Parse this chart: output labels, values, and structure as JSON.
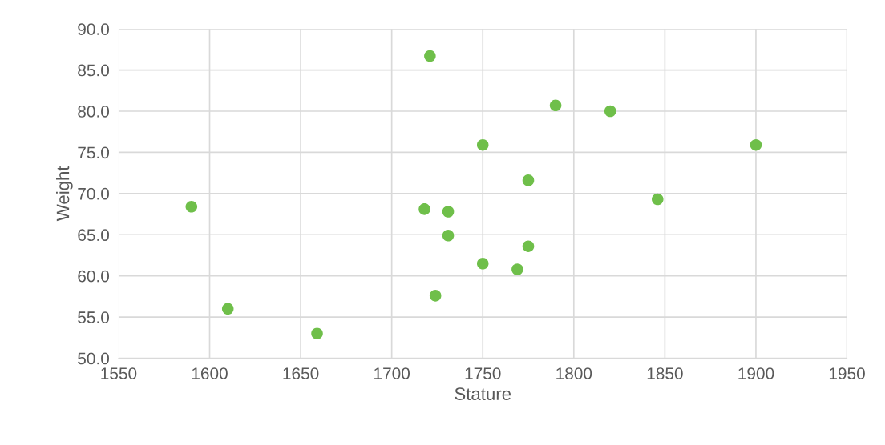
{
  "chart_data": {
    "type": "scatter",
    "xlabel": "Stature",
    "ylabel": "Weight",
    "x": [
      1721,
      1790,
      1820,
      1750,
      1900,
      1775,
      1846,
      1590,
      1718,
      1731,
      1731,
      1775,
      1750,
      1769,
      1724,
      1610,
      1659
    ],
    "series": [
      {
        "color": "#6fbf4a",
        "values": [
          86.7,
          80.7,
          80.0,
          75.9,
          75.9,
          71.6,
          69.3,
          68.4,
          68.1,
          67.8,
          64.9,
          63.6,
          61.5,
          60.8,
          57.6,
          56.0,
          53.0
        ]
      }
    ],
    "xlim": [
      1550,
      1950
    ],
    "xticks": [
      1550,
      1600,
      1650,
      1700,
      1750,
      1800,
      1850,
      1900,
      1950
    ],
    "ylim": [
      50,
      90
    ],
    "yticks": [
      {
        "value": 50,
        "label": "50.0"
      },
      {
        "value": 55,
        "label": "55.0"
      },
      {
        "value": 60,
        "label": "60.0"
      },
      {
        "value": 65,
        "label": "65.0"
      },
      {
        "value": 70,
        "label": "70.0"
      },
      {
        "value": 75,
        "label": "75.0"
      },
      {
        "value": 80,
        "label": "80.0"
      },
      {
        "value": 85,
        "label": "85.0"
      },
      {
        "value": 90,
        "label": "90.0"
      }
    ],
    "grid": true,
    "marker": "circle"
  }
}
